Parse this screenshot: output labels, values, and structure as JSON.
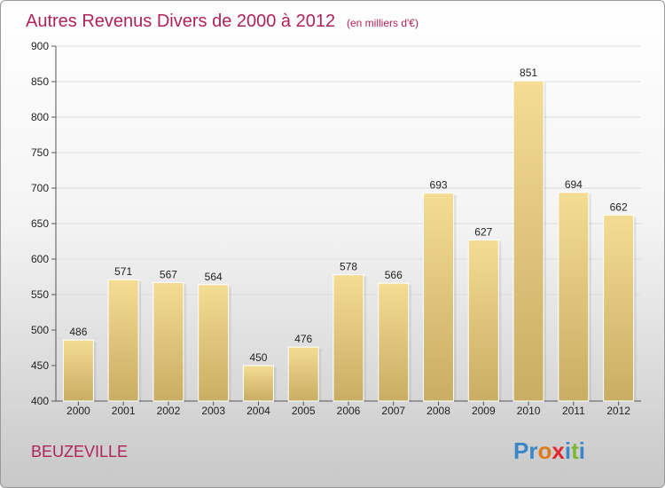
{
  "chart_data": {
    "type": "bar",
    "title": "Autres Revenus Divers de 2000 à 2012",
    "subtitle": "(en milliers d'€)",
    "categories": [
      "2000",
      "2001",
      "2002",
      "2003",
      "2004",
      "2005",
      "2006",
      "2007",
      "2008",
      "2009",
      "2010",
      "2011",
      "2012"
    ],
    "values": [
      486,
      571,
      567,
      564,
      450,
      476,
      578,
      566,
      693,
      627,
      851,
      694,
      662
    ],
    "ylim": [
      400,
      900
    ],
    "yticks": [
      400,
      450,
      500,
      550,
      600,
      650,
      700,
      750,
      800,
      850,
      900
    ],
    "grid": true,
    "bar_color": "#e8cf86",
    "title_color": "#b0225a"
  },
  "location": "BEUZEVILLE",
  "logo": {
    "text": "Proxiti",
    "letters": [
      {
        "ch": "P",
        "color": "#3a86c8"
      },
      {
        "ch": "r",
        "color": "#3a86c8"
      },
      {
        "ch": "o",
        "color": "#e07b1c"
      },
      {
        "ch": "x",
        "color": "#e0282e"
      },
      {
        "ch": "i",
        "color": "#3a86c8"
      },
      {
        "ch": "t",
        "color": "#7cb82f"
      },
      {
        "ch": "i",
        "color": "#3a86c8"
      }
    ]
  }
}
